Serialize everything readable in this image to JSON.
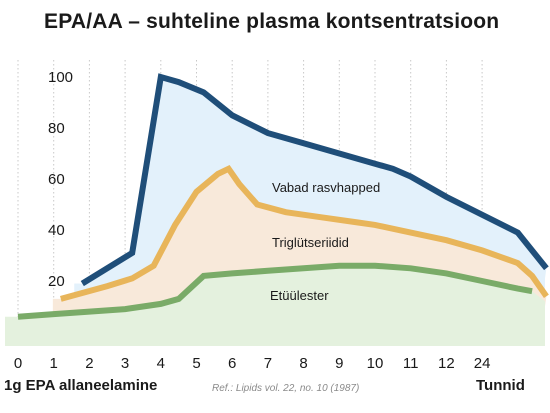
{
  "chart_data": {
    "type": "area",
    "title": "EPA/AA – suhteline plasma kontsentratsioon",
    "xlabel_left": "1g EPA allaneelamine",
    "xlabel_right": "Tunnid",
    "reference": "Ref.: Lipids vol. 22, no. 10 (1987)",
    "x_tick_labels": [
      "0",
      "1",
      "2",
      "3",
      "4",
      "5",
      "6",
      "7",
      "8",
      "9",
      "10",
      "11",
      "12",
      "24"
    ],
    "y_ticks": [
      20,
      40,
      60,
      80,
      100
    ],
    "ylim": [
      0,
      110
    ],
    "grid": "vertical",
    "series": [
      {
        "name": "Vabad rasvhapped",
        "color": "#1f4e79",
        "fill": "#e3f1fb",
        "points": [
          [
            1.8,
            19
          ],
          [
            3.2,
            31
          ],
          [
            4.0,
            100
          ],
          [
            4.5,
            98
          ],
          [
            5.2,
            94
          ],
          [
            6.0,
            85
          ],
          [
            7.0,
            78
          ],
          [
            8.0,
            74
          ],
          [
            9.0,
            70
          ],
          [
            10.0,
            66
          ],
          [
            10.5,
            64
          ],
          [
            11.0,
            61
          ],
          [
            12.0,
            53
          ],
          [
            14.0,
            39
          ],
          [
            14.8,
            25
          ]
        ]
      },
      {
        "name": "Triglütseriidid",
        "color": "#e8b55a",
        "fill": "#f8e9da",
        "points": [
          [
            1.2,
            13
          ],
          [
            2.5,
            18
          ],
          [
            3.2,
            21
          ],
          [
            3.8,
            26
          ],
          [
            4.4,
            42
          ],
          [
            5.0,
            55
          ],
          [
            5.6,
            62
          ],
          [
            5.9,
            64
          ],
          [
            6.2,
            58
          ],
          [
            6.7,
            50
          ],
          [
            7.5,
            47
          ],
          [
            8.5,
            45
          ],
          [
            9.5,
            43
          ],
          [
            10.0,
            42
          ],
          [
            11.0,
            39
          ],
          [
            12.0,
            36
          ],
          [
            13.0,
            32
          ],
          [
            14.0,
            27
          ],
          [
            14.4,
            22
          ],
          [
            14.8,
            14
          ]
        ]
      },
      {
        "name": "Etüülester",
        "color": "#7aab68",
        "fill": "#e4f1de",
        "points": [
          [
            0.0,
            6
          ],
          [
            1.0,
            7
          ],
          [
            2.0,
            8
          ],
          [
            3.0,
            9
          ],
          [
            4.0,
            11
          ],
          [
            4.5,
            13
          ],
          [
            5.2,
            22
          ],
          [
            6.0,
            23
          ],
          [
            7.0,
            24
          ],
          [
            8.0,
            25
          ],
          [
            9.0,
            26
          ],
          [
            10.0,
            26
          ],
          [
            11.0,
            25
          ],
          [
            12.0,
            23
          ],
          [
            13.0,
            20
          ],
          [
            14.0,
            17
          ],
          [
            14.4,
            16
          ]
        ]
      }
    ]
  }
}
